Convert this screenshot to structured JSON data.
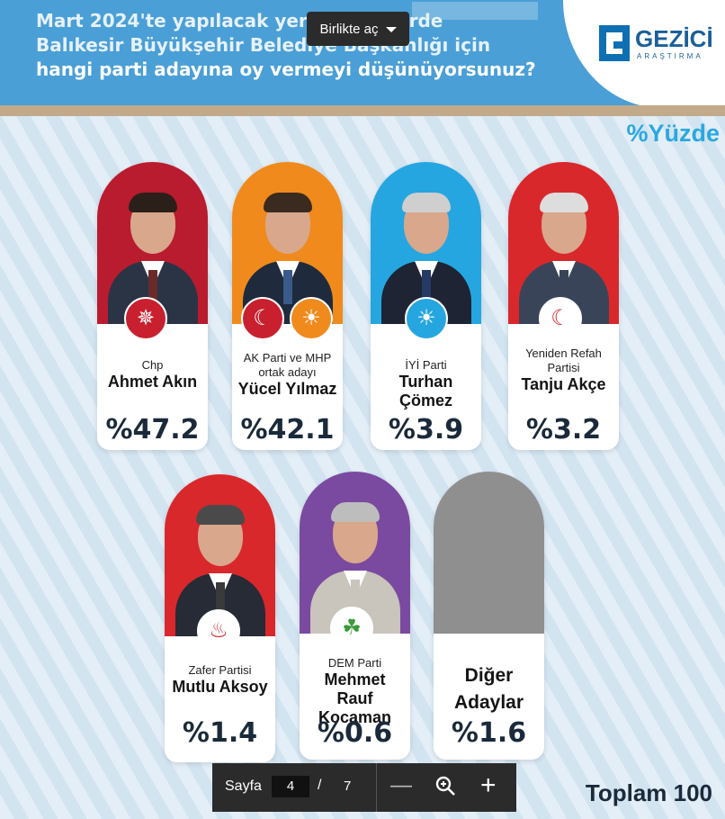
{
  "header": {
    "question_lines": [
      "Mart 2024'te yapılacak yerel seçimlerde",
      "Balıkesir Büyükşehir Belediye Başkanlığı için",
      "hangi parti adayına oy vermeyi düşünüyorsunuz?"
    ],
    "logo_name": "GEZİCİ",
    "logo_sub": "ARAŞTIRMA",
    "brand_color": "#1b5f9a"
  },
  "viewer": {
    "open_with_label": "Birlikte aç",
    "page_label": "Sayfa",
    "current_page": "4",
    "slash": "/",
    "total_pages": "7",
    "zoom_out_icon": "minus-icon",
    "zoom_icon": "zoom-icon",
    "zoom_in_icon": "plus-icon"
  },
  "chart_data": {
    "type": "bar",
    "title": "Mart 2024'te yapılacak yerel seçimlerde Balıkesir Büyükşehir Belediye Başkanlığı için hangi parti adayına oy vermeyi düşünüyorsunuz?",
    "unit_label": "%Yüzde",
    "total_label": "Toplam 100",
    "categories": [
      "Ahmet Akın",
      "Yücel Yılmaz",
      "Turhan Çömez",
      "Tanju Akçe",
      "Mutlu Aksoy",
      "Mehmet Rauf Kocaman",
      "Diğer Adaylar"
    ],
    "values": [
      47.2,
      42.1,
      3.9,
      3.2,
      1.4,
      0.6,
      1.6
    ],
    "candidates": [
      {
        "party": "Chp",
        "name": "Ahmet Akın",
        "value": 47.2,
        "label": "%47.2",
        "color": "#b81c2e"
      },
      {
        "party": "AK Parti ve MHP ortak adayı",
        "name": "Yücel Yılmaz",
        "value": 42.1,
        "label": "%42.1",
        "color": "#f08a1c"
      },
      {
        "party": "İYİ Parti",
        "name": "Turhan Çömez",
        "value": 3.9,
        "label": "%3.9",
        "color": "#26a6e0"
      },
      {
        "party": "Yeniden Refah Partisi",
        "name": "Tanju Akçe",
        "value": 3.2,
        "label": "%3.2",
        "color": "#d8282c"
      },
      {
        "party": "Zafer Partisi",
        "name": "Mutlu Aksoy",
        "value": 1.4,
        "label": "%1.4",
        "color": "#d8282c"
      },
      {
        "party": "DEM Parti",
        "name": "Mehmet Rauf Kocaman",
        "value": 0.6,
        "label": "%0.6",
        "color": "#7a4aa0"
      },
      {
        "party": "",
        "name": "Diğer Adaylar",
        "value": 1.6,
        "label": "%1.6",
        "color": "#8f8f8f"
      }
    ]
  }
}
